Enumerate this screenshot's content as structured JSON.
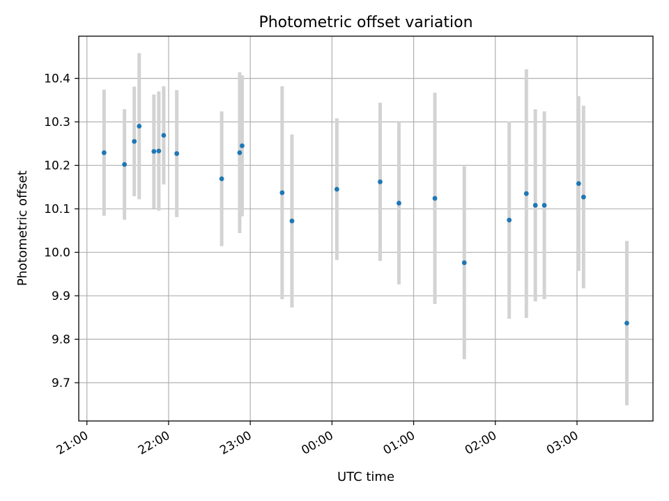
{
  "chart_data": {
    "type": "scatter",
    "title": "Photometric offset variation",
    "xlabel": "UTC time",
    "ylabel": "Photometric offset",
    "x_ticks": [
      "21:00",
      "22:00",
      "23:00",
      "00:00",
      "01:00",
      "02:00",
      "03:00"
    ],
    "y_ticks": [
      "9.7",
      "9.8",
      "9.9",
      "10.0",
      "10.1",
      "10.2",
      "10.3",
      "10.4"
    ],
    "x_tick_hours": [
      0,
      1,
      2,
      3,
      4,
      5,
      6
    ],
    "y_tick_values": [
      9.7,
      9.8,
      9.9,
      10.0,
      10.1,
      10.2,
      10.3,
      10.4
    ],
    "x_unit_note": "hours after 21:00 UTC",
    "xlim": [
      -0.1,
      6.93
    ],
    "ylim": [
      9.612,
      10.497
    ],
    "grid": true,
    "colors": {
      "point": "#1f77b4",
      "errorbar": "#d3d3d3",
      "grid": "#b0b0b0"
    },
    "points": [
      {
        "x": 0.21,
        "y": 10.229,
        "err": 0.145
      },
      {
        "x": 0.46,
        "y": 10.202,
        "err": 0.127
      },
      {
        "x": 0.58,
        "y": 10.255,
        "err": 0.126
      },
      {
        "x": 0.64,
        "y": 10.29,
        "err": 0.168
      },
      {
        "x": 0.82,
        "y": 10.232,
        "err": 0.131
      },
      {
        "x": 0.88,
        "y": 10.233,
        "err": 0.137
      },
      {
        "x": 0.94,
        "y": 10.269,
        "err": 0.113
      },
      {
        "x": 1.1,
        "y": 10.227,
        "err": 0.146
      },
      {
        "x": 1.65,
        "y": 10.169,
        "err": 0.155
      },
      {
        "x": 1.87,
        "y": 10.229,
        "err": 0.185
      },
      {
        "x": 1.9,
        "y": 10.245,
        "err": 0.162
      },
      {
        "x": 2.39,
        "y": 10.137,
        "err": 0.245
      },
      {
        "x": 2.51,
        "y": 10.072,
        "err": 0.199
      },
      {
        "x": 3.06,
        "y": 10.145,
        "err": 0.163
      },
      {
        "x": 3.59,
        "y": 10.162,
        "err": 0.182
      },
      {
        "x": 3.82,
        "y": 10.113,
        "err": 0.187
      },
      {
        "x": 4.26,
        "y": 10.124,
        "err": 0.243
      },
      {
        "x": 4.62,
        "y": 9.976,
        "err": 0.222
      },
      {
        "x": 5.17,
        "y": 10.074,
        "err": 0.227
      },
      {
        "x": 5.38,
        "y": 10.135,
        "err": 0.286
      },
      {
        "x": 5.49,
        "y": 10.108,
        "err": 0.221
      },
      {
        "x": 5.6,
        "y": 10.108,
        "err": 0.216
      },
      {
        "x": 6.02,
        "y": 10.158,
        "err": 0.201
      },
      {
        "x": 6.08,
        "y": 10.127,
        "err": 0.21
      },
      {
        "x": 6.61,
        "y": 9.837,
        "err": 0.189
      }
    ]
  }
}
